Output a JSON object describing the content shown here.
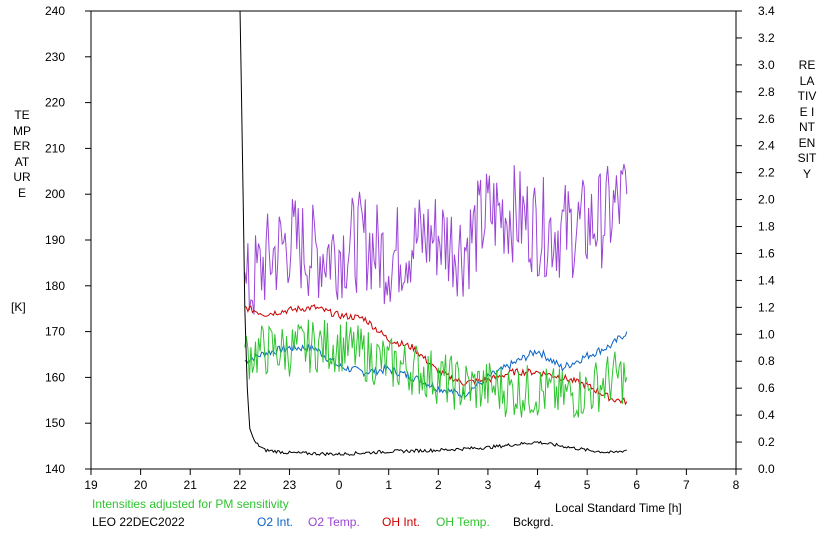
{
  "chart_data": {
    "type": "line",
    "y_left_label": "TEMPERATURE",
    "y_left_unit": "[K]",
    "y_right_label": "RELATIVE INTENSITY",
    "xlabel": "Local Standard Time [h]",
    "subtitle": "Intensities adjusted for PM sensitivity",
    "station": "LEO 22DEC2022",
    "x_range": [
      19,
      32
    ],
    "x_ticks": [
      "19",
      "20",
      "21",
      "22",
      "23",
      "0",
      "1",
      "2",
      "3",
      "4",
      "5",
      "6",
      "7",
      "8"
    ],
    "y_left_range": [
      140,
      240
    ],
    "y_left_ticks": [
      "140",
      "150",
      "160",
      "170",
      "180",
      "190",
      "200",
      "210",
      "220",
      "230",
      "240"
    ],
    "y_right_range": [
      0.0,
      3.4
    ],
    "y_right_ticks": [
      "0.0",
      "0.2",
      "0.4",
      "0.6",
      "0.8",
      "1.0",
      "1.2",
      "1.4",
      "1.6",
      "1.8",
      "2.0",
      "2.2",
      "2.4",
      "2.6",
      "2.8",
      "3.0",
      "3.2",
      "3.4"
    ],
    "grid": false,
    "legend_position": "bottom",
    "series": [
      {
        "name": "O2 Int.",
        "axis": "right",
        "color": "#0a64c8",
        "x": [
          22.1,
          22.5,
          23.0,
          23.5,
          24.0,
          24.5,
          25.0,
          25.5,
          26.0,
          26.5,
          27.0,
          27.5,
          28.0,
          28.5,
          29.0,
          29.5,
          29.8
        ],
        "y": [
          0.8,
          0.86,
          0.9,
          0.9,
          0.76,
          0.72,
          0.74,
          0.68,
          0.6,
          0.55,
          0.68,
          0.78,
          0.88,
          0.75,
          0.84,
          0.92,
          1.02
        ]
      },
      {
        "name": "O2 Temp.",
        "axis": "left",
        "color": "#9a45d6",
        "x": [
          22.1,
          22.5,
          23.0,
          23.5,
          24.0,
          24.5,
          25.0,
          25.5,
          26.0,
          26.5,
          27.0,
          27.5,
          28.0,
          28.5,
          29.0,
          29.5,
          29.8
        ],
        "y": [
          178,
          185,
          190,
          187,
          188,
          190,
          186,
          190,
          191,
          188,
          196,
          196,
          193,
          192,
          193,
          196,
          200
        ]
      },
      {
        "name": "OH Int.",
        "axis": "right",
        "color": "#cc0000",
        "x": [
          22.1,
          22.5,
          23.0,
          23.5,
          24.0,
          24.5,
          25.0,
          25.5,
          26.0,
          26.5,
          27.0,
          27.5,
          28.0,
          28.5,
          29.0,
          29.5,
          29.8
        ],
        "y": [
          1.2,
          1.15,
          1.18,
          1.2,
          1.14,
          1.12,
          0.96,
          0.9,
          0.72,
          0.64,
          0.66,
          0.72,
          0.72,
          0.68,
          0.62,
          0.52,
          0.5
        ]
      },
      {
        "name": "OH Temp.",
        "axis": "left",
        "color": "#2fc42f",
        "x": [
          22.1,
          22.5,
          23.0,
          23.5,
          24.0,
          24.5,
          25.0,
          25.5,
          26.0,
          26.5,
          27.0,
          27.5,
          28.0,
          28.5,
          29.0,
          29.5,
          29.8
        ],
        "y": [
          165,
          166,
          166,
          167,
          167,
          165,
          163,
          162,
          160,
          158,
          158,
          157,
          157,
          156,
          157,
          160,
          160
        ]
      },
      {
        "name": "Bckgrd.",
        "axis": "right",
        "color": "#000000",
        "x": [
          22.0,
          22.05,
          22.1,
          22.15,
          22.2,
          22.3,
          22.5,
          23.0,
          24.0,
          25.0,
          26.0,
          27.0,
          27.5,
          28.0,
          28.5,
          29.0,
          29.5,
          29.8
        ],
        "y": [
          3.5,
          2.4,
          1.2,
          0.6,
          0.3,
          0.2,
          0.14,
          0.12,
          0.11,
          0.13,
          0.14,
          0.16,
          0.18,
          0.2,
          0.17,
          0.14,
          0.12,
          0.14
        ]
      }
    ]
  }
}
